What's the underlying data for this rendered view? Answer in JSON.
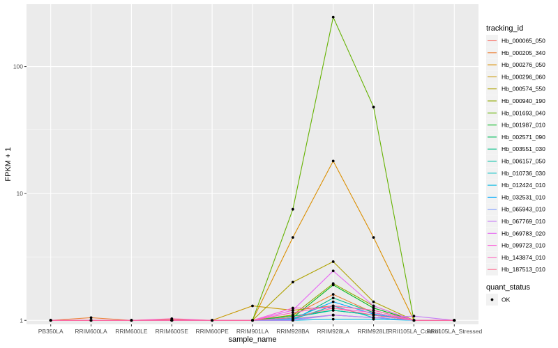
{
  "chart_data": {
    "type": "line",
    "xlabel": "sample_name",
    "ylabel": "FPKM + 1",
    "y_scale": "log10",
    "ylim": [
      0.93,
      310
    ],
    "y_ticks": [
      {
        "value": 1,
        "label": "1"
      },
      {
        "value": 10,
        "label": "10"
      },
      {
        "value": 100,
        "label": "100"
      }
    ],
    "grid": true,
    "legend_position": "right",
    "categories": [
      "PB350LA",
      "RRIM600LA",
      "RRIM600LE",
      "RRIM600SE",
      "RRIM600PE",
      "RRIM901LA",
      "RRIM928BA",
      "RRIM928LA",
      "RRIM928LE",
      "RRII105LA_Control",
      "RRII105LA_Stressed"
    ],
    "color_legend": {
      "title": "tracking_id",
      "items": [
        {
          "label": "Hb_000065_050",
          "color": "#F8766D"
        },
        {
          "label": "Hb_000205_340",
          "color": "#EC8239"
        },
        {
          "label": "Hb_000276_050",
          "color": "#DB8E00"
        },
        {
          "label": "Hb_000296_060",
          "color": "#C79800"
        },
        {
          "label": "Hb_000574_550",
          "color": "#AEA200"
        },
        {
          "label": "Hb_000940_190",
          "color": "#8FAA00"
        },
        {
          "label": "Hb_001693_040",
          "color": "#64B200"
        },
        {
          "label": "Hb_001987_010",
          "color": "#00B81B"
        },
        {
          "label": "Hb_002571_090",
          "color": "#00BD5C"
        },
        {
          "label": "Hb_003551_030",
          "color": "#00C085"
        },
        {
          "label": "Hb_006157_050",
          "color": "#00C1A7"
        },
        {
          "label": "Hb_010736_030",
          "color": "#00BFC4"
        },
        {
          "label": "Hb_012424_010",
          "color": "#00B8E3"
        },
        {
          "label": "Hb_032531_010",
          "color": "#00ABFD"
        },
        {
          "label": "Hb_065943_010",
          "color": "#7B9BFF"
        },
        {
          "label": "Hb_067769_010",
          "color": "#C57CF7"
        },
        {
          "label": "Hb_069783_020",
          "color": "#E76BF3"
        },
        {
          "label": "Hb_099723_010",
          "color": "#FA62DB"
        },
        {
          "label": "Hb_143874_010",
          "color": "#FF62BC"
        },
        {
          "label": "Hb_187513_010",
          "color": "#FF6C91"
        }
      ]
    },
    "shape_legend": {
      "title": "quant_status",
      "items": [
        {
          "label": "OK",
          "color": "#000000"
        }
      ]
    },
    "series": [
      {
        "name": "Hb_000065_050",
        "values": [
          1.0,
          1.0,
          1.0,
          1.0,
          1.0,
          1.0,
          1.03,
          1.1,
          1.05,
          1.0,
          1.0
        ]
      },
      {
        "name": "Hb_000205_340",
        "values": [
          1.0,
          1.05,
          1.0,
          1.02,
          1.0,
          1.0,
          1.1,
          1.6,
          1.15,
          1.0,
          1.0
        ]
      },
      {
        "name": "Hb_000276_050",
        "values": [
          1.0,
          1.0,
          1.0,
          1.0,
          1.0,
          1.0,
          4.5,
          18.0,
          4.5,
          1.0,
          1.0
        ]
      },
      {
        "name": "Hb_000296_060",
        "values": [
          1.0,
          1.0,
          1.0,
          1.0,
          1.0,
          1.3,
          1.2,
          1.3,
          1.2,
          1.0,
          1.0
        ]
      },
      {
        "name": "Hb_000574_550",
        "values": [
          1.0,
          1.0,
          1.0,
          1.0,
          1.0,
          1.0,
          2.0,
          2.9,
          1.4,
          1.0,
          1.0
        ]
      },
      {
        "name": "Hb_000940_190",
        "values": [
          1.0,
          1.0,
          1.0,
          1.0,
          1.0,
          1.0,
          1.1,
          1.95,
          1.3,
          1.0,
          1.0
        ]
      },
      {
        "name": "Hb_001693_040",
        "values": [
          1.0,
          1.0,
          1.0,
          1.0,
          1.0,
          1.0,
          7.5,
          245.0,
          48.0,
          1.0,
          1.0
        ]
      },
      {
        "name": "Hb_001987_010",
        "values": [
          1.0,
          1.0,
          1.0,
          1.0,
          1.0,
          1.0,
          1.05,
          1.9,
          1.25,
          1.0,
          1.0
        ]
      },
      {
        "name": "Hb_002571_090",
        "values": [
          1.0,
          1.0,
          1.0,
          1.0,
          1.0,
          1.0,
          1.08,
          1.2,
          1.1,
          1.0,
          1.0
        ]
      },
      {
        "name": "Hb_003551_030",
        "values": [
          1.0,
          1.0,
          1.0,
          1.0,
          1.0,
          1.0,
          1.0,
          1.5,
          1.15,
          1.0,
          1.0
        ]
      },
      {
        "name": "Hb_006157_050",
        "values": [
          1.0,
          1.0,
          1.0,
          1.0,
          1.0,
          1.0,
          1.05,
          1.2,
          1.1,
          1.0,
          1.0
        ]
      },
      {
        "name": "Hb_010736_030",
        "values": [
          1.0,
          1.0,
          1.0,
          1.0,
          1.0,
          1.0,
          1.02,
          1.3,
          1.05,
          1.0,
          1.0
        ]
      },
      {
        "name": "Hb_012424_010",
        "values": [
          1.0,
          1.0,
          1.0,
          1.0,
          1.0,
          1.0,
          1.0,
          1.02,
          1.02,
          1.0,
          1.0
        ]
      },
      {
        "name": "Hb_032531_010",
        "values": [
          1.0,
          1.0,
          1.0,
          1.0,
          1.0,
          1.0,
          1.03,
          1.4,
          1.12,
          1.0,
          1.0
        ]
      },
      {
        "name": "Hb_065943_010",
        "values": [
          1.0,
          1.0,
          1.0,
          1.0,
          1.0,
          1.0,
          1.02,
          1.1,
          1.05,
          1.0,
          1.0
        ]
      },
      {
        "name": "Hb_067769_010",
        "values": [
          1.0,
          1.0,
          1.0,
          1.0,
          1.0,
          1.0,
          1.0,
          1.1,
          1.05,
          1.08,
          1.0
        ]
      },
      {
        "name": "Hb_069783_020",
        "values": [
          1.0,
          1.0,
          1.0,
          1.0,
          1.0,
          1.0,
          1.2,
          2.45,
          1.3,
          1.0,
          1.0
        ]
      },
      {
        "name": "Hb_099723_010",
        "values": [
          1.0,
          1.0,
          1.0,
          1.0,
          1.0,
          1.0,
          1.25,
          1.25,
          1.15,
          1.0,
          1.0
        ]
      },
      {
        "name": "Hb_143874_010",
        "values": [
          1.0,
          1.0,
          1.0,
          1.03,
          1.0,
          1.0,
          1.15,
          1.3,
          1.2,
          1.0,
          1.0
        ]
      },
      {
        "name": "Hb_187513_010",
        "values": [
          1.0,
          1.0,
          1.0,
          1.0,
          1.0,
          1.0,
          1.05,
          1.25,
          1.1,
          1.0,
          1.0
        ]
      }
    ]
  }
}
